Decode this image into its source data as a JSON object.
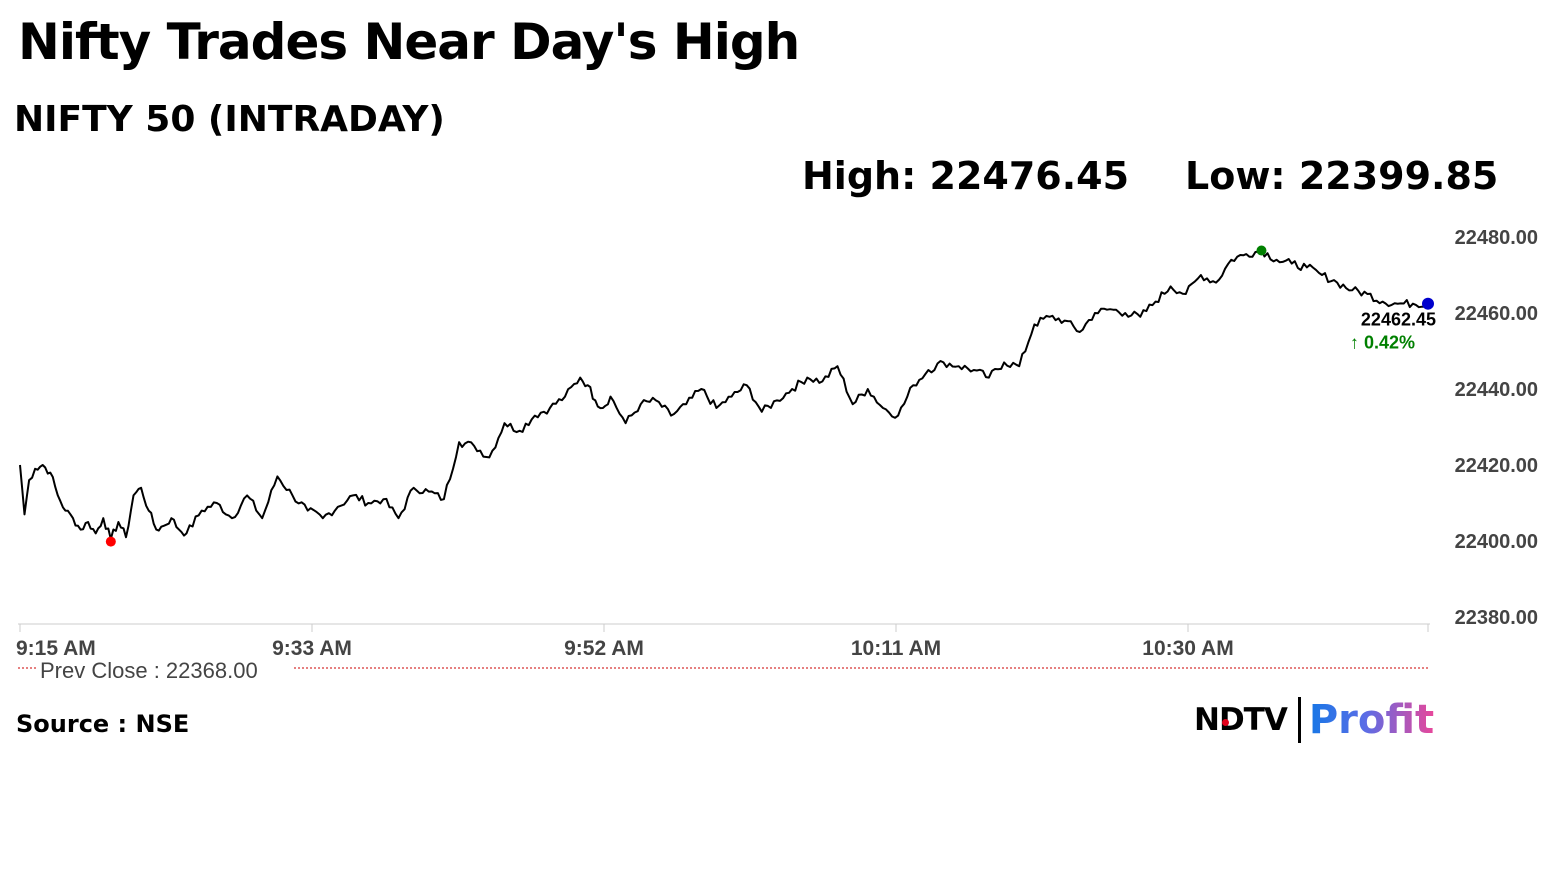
{
  "page": {
    "title": "Nifty Trades Near Day's High",
    "subtitle": "NIFTY 50 (INTRADAY)",
    "high_label": "High: 22476.45",
    "low_label": "Low: 22399.85",
    "source": "Source : NSE",
    "logo": {
      "ndtv": "NDTV",
      "profit": "Profit"
    }
  },
  "chart_data": {
    "type": "line",
    "x_ticks": [
      "9:15 AM",
      "9:33 AM",
      "9:52 AM",
      "10:11 AM",
      "10:30 AM"
    ],
    "y_ticks": [
      "22480.00",
      "22460.00",
      "22440.00",
      "22420.00",
      "22400.00",
      "22380.00"
    ],
    "ylim": [
      22380,
      22480
    ],
    "x_range_minutes": [
      0,
      93
    ],
    "prev_close_label": "Prev Close : 22368.00",
    "prev_close": 22368.0,
    "last_value_label": "22462.45",
    "change_label": "↑ 0.42%",
    "high": 22476.45,
    "low": 22399.85,
    "last": 22462.45,
    "colors": {
      "line": "#000000",
      "high_marker": "#008000",
      "low_marker": "#ff0000",
      "last_marker": "#0000cc",
      "change": "#008000",
      "prev_close_line": "#cc0000"
    },
    "series": [
      {
        "x": [
          0,
          0.3,
          0.6,
          1,
          1.5,
          2,
          2.5,
          3,
          3.5,
          4,
          4.5,
          5,
          5.5,
          6,
          6.5,
          7,
          7.5,
          8,
          8.5,
          9,
          9.5,
          10,
          10.5,
          11,
          12,
          13,
          14,
          15,
          16,
          17,
          18,
          19,
          20,
          21,
          22,
          23,
          24,
          25,
          26,
          27,
          28,
          29,
          30,
          31,
          32,
          33,
          34,
          35,
          36,
          37,
          37.5,
          38,
          38.5,
          39,
          40,
          41,
          42,
          43,
          44,
          45,
          46,
          47,
          48,
          49,
          50,
          51,
          52,
          53,
          54,
          55,
          56,
          57,
          58,
          59,
          60,
          61,
          62,
          63,
          64,
          65,
          66,
          67,
          68,
          69,
          70,
          71,
          72,
          73,
          74,
          75,
          76,
          77,
          78,
          79,
          80,
          81,
          82,
          83,
          84,
          85,
          86,
          87,
          88,
          89,
          90,
          91,
          92,
          93
        ],
        "values": [
          22420,
          22407,
          22416,
          22419,
          22420,
          22418,
          22412,
          22408,
          22406,
          22403,
          22405,
          22402,
          22406,
          22400.5,
          22405,
          22401,
          22412,
          22414,
          22408,
          22403,
          22404,
          22406,
          22403,
          22402,
          22408,
          22410,
          22406,
          22412,
          22406,
          22417,
          22412,
          22408,
          22406,
          22409,
          22412,
          22410,
          22411,
          22406,
          22414,
          22413,
          22411,
          22426,
          22425,
          22422,
          22431,
          22429,
          22433,
          22435,
          22438,
          22443,
          22441,
          22437,
          22435,
          22438,
          22431,
          22436,
          22437,
          22433,
          22436,
          22440,
          22435,
          22438,
          22441,
          22434,
          22437,
          22440,
          22443,
          22442,
          22446,
          22436,
          22440,
          22435,
          22433,
          22441,
          22445,
          22447,
          22446,
          22445,
          22443,
          22447,
          22446,
          22457,
          22459,
          22458,
          22455,
          22460,
          22461,
          22460,
          22459,
          22463,
          22467,
          22465,
          22470,
          22468,
          22474,
          22475.5,
          22476.45,
          22474,
          22473,
          22472,
          22470,
          22468,
          22466,
          22465,
          22463,
          22462.45,
          22462.45,
          22462.45
        ]
      }
    ]
  }
}
